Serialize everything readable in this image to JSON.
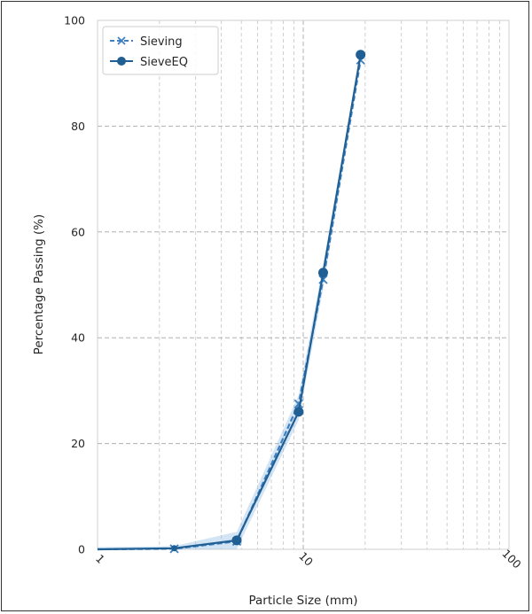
{
  "chart_data": {
    "type": "line",
    "xscale": "log",
    "xlim": [
      1,
      100
    ],
    "ylim": [
      0,
      100
    ],
    "xlabel": "Particle Size (mm)",
    "ylabel": "Percentage Passing (%)",
    "xticks": [
      "1",
      "10",
      "100"
    ],
    "yticks": [
      "0",
      "20",
      "40",
      "60",
      "80",
      "100"
    ],
    "grid": true,
    "legend": {
      "placement": "top-left"
    },
    "series": [
      {
        "name": "Sieving",
        "style": "dashed",
        "marker": "x",
        "color": "#3d7fc1",
        "points": [
          {
            "x": 1.0,
            "y": 0.0
          },
          {
            "x": 2.36,
            "y": 0.1
          },
          {
            "x": 4.75,
            "y": 1.5
          },
          {
            "x": 9.5,
            "y": 27.5
          },
          {
            "x": 12.5,
            "y": 51.0
          },
          {
            "x": 19.0,
            "y": 92.5
          }
        ]
      },
      {
        "name": "SieveEQ",
        "style": "solid",
        "marker": "circle",
        "color": "#1f5f94",
        "points": [
          {
            "x": 1.0,
            "y": 0.0
          },
          {
            "x": 2.36,
            "y": 0.2
          },
          {
            "x": 4.75,
            "y": 1.7
          },
          {
            "x": 9.5,
            "y": 26.0
          },
          {
            "x": 12.5,
            "y": 52.3
          },
          {
            "x": 19.0,
            "y": 93.5
          }
        ]
      }
    ]
  }
}
